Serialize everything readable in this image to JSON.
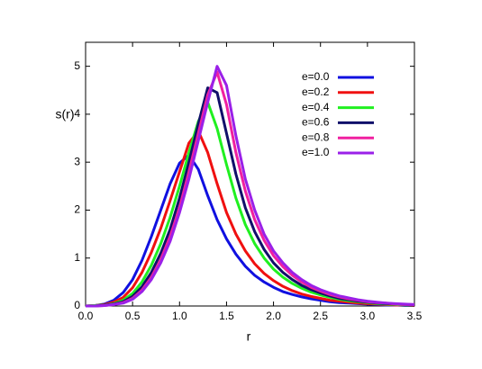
{
  "chart_data": {
    "type": "line",
    "x_label": "r",
    "y_label": "s(r)",
    "x": [
      0,
      0.1,
      0.2,
      0.3,
      0.4,
      0.5,
      0.6,
      0.7,
      0.8,
      0.9,
      1.0,
      1.1,
      1.2,
      1.3,
      1.4,
      1.5,
      1.6,
      1.7,
      1.8,
      1.9,
      2.0,
      2.1,
      2.2,
      2.3,
      2.4,
      2.5,
      2.6,
      2.7,
      2.8,
      2.9,
      3.0,
      3.1,
      3.2,
      3.3,
      3.4,
      3.5
    ],
    "series": [
      {
        "name": "e=0.0",
        "color": "#1010e0",
        "values": [
          0,
          0.01,
          0.04,
          0.12,
          0.28,
          0.55,
          0.95,
          1.45,
          2.0,
          2.55,
          2.98,
          3.15,
          2.85,
          2.3,
          1.8,
          1.4,
          1.08,
          0.83,
          0.64,
          0.5,
          0.39,
          0.3,
          0.24,
          0.19,
          0.15,
          0.12,
          0.09,
          0.07,
          0.06,
          0.05,
          0.04,
          0.03,
          0.02,
          0.02,
          0.01,
          0.01
        ]
      },
      {
        "name": "e=0.2",
        "color": "#f01010",
        "values": [
          0,
          0.01,
          0.03,
          0.08,
          0.18,
          0.38,
          0.7,
          1.12,
          1.62,
          2.2,
          2.8,
          3.4,
          3.65,
          3.2,
          2.55,
          1.95,
          1.5,
          1.15,
          0.88,
          0.68,
          0.53,
          0.41,
          0.32,
          0.25,
          0.2,
          0.16,
          0.12,
          0.1,
          0.08,
          0.06,
          0.05,
          0.04,
          0.03,
          0.02,
          0.02,
          0.01
        ]
      },
      {
        "name": "e=0.4",
        "color": "#20f020",
        "values": [
          0,
          0.01,
          0.02,
          0.05,
          0.12,
          0.26,
          0.5,
          0.85,
          1.3,
          1.85,
          2.5,
          3.2,
          3.85,
          4.25,
          3.7,
          2.95,
          2.25,
          1.7,
          1.3,
          1.0,
          0.77,
          0.6,
          0.47,
          0.37,
          0.29,
          0.23,
          0.18,
          0.14,
          0.11,
          0.09,
          0.07,
          0.05,
          0.04,
          0.03,
          0.02,
          0.02
        ]
      },
      {
        "name": "e=0.6",
        "color": "#10106a",
        "values": [
          0,
          0,
          0.02,
          0.04,
          0.09,
          0.2,
          0.4,
          0.7,
          1.1,
          1.6,
          2.25,
          3.0,
          3.8,
          4.55,
          4.45,
          3.6,
          2.75,
          2.05,
          1.55,
          1.18,
          0.9,
          0.7,
          0.55,
          0.43,
          0.34,
          0.27,
          0.21,
          0.16,
          0.13,
          0.1,
          0.08,
          0.06,
          0.05,
          0.04,
          0.03,
          0.02
        ]
      },
      {
        "name": "e=0.8",
        "color": "#f020a0",
        "values": [
          0,
          0,
          0.01,
          0.03,
          0.07,
          0.16,
          0.33,
          0.6,
          0.97,
          1.45,
          2.05,
          2.8,
          3.6,
          4.4,
          4.88,
          4.2,
          3.2,
          2.4,
          1.8,
          1.37,
          1.05,
          0.82,
          0.64,
          0.5,
          0.39,
          0.31,
          0.24,
          0.19,
          0.15,
          0.12,
          0.09,
          0.07,
          0.06,
          0.04,
          0.03,
          0.03
        ]
      },
      {
        "name": "e=1.0",
        "color": "#9a20e8",
        "values": [
          0,
          0,
          0.01,
          0.03,
          0.06,
          0.14,
          0.3,
          0.55,
          0.9,
          1.35,
          1.95,
          2.65,
          3.45,
          4.25,
          5.0,
          4.6,
          3.55,
          2.65,
          2.0,
          1.5,
          1.15,
          0.9,
          0.7,
          0.55,
          0.43,
          0.34,
          0.27,
          0.21,
          0.17,
          0.13,
          0.1,
          0.08,
          0.06,
          0.05,
          0.04,
          0.03
        ]
      }
    ],
    "xlim": [
      0,
      3.5
    ],
    "ylim": [
      0,
      5.5
    ],
    "xticks": [
      {
        "value": 0,
        "label": "0.0"
      },
      0.5,
      {
        "value": 1,
        "label": "1.0"
      },
      1.5,
      {
        "value": 2,
        "label": "2.0"
      },
      2.5,
      {
        "value": 3,
        "label": "3.0"
      },
      3.5
    ],
    "yticks": [
      0,
      1,
      2,
      3,
      4,
      5
    ],
    "legend": "top-right"
  }
}
